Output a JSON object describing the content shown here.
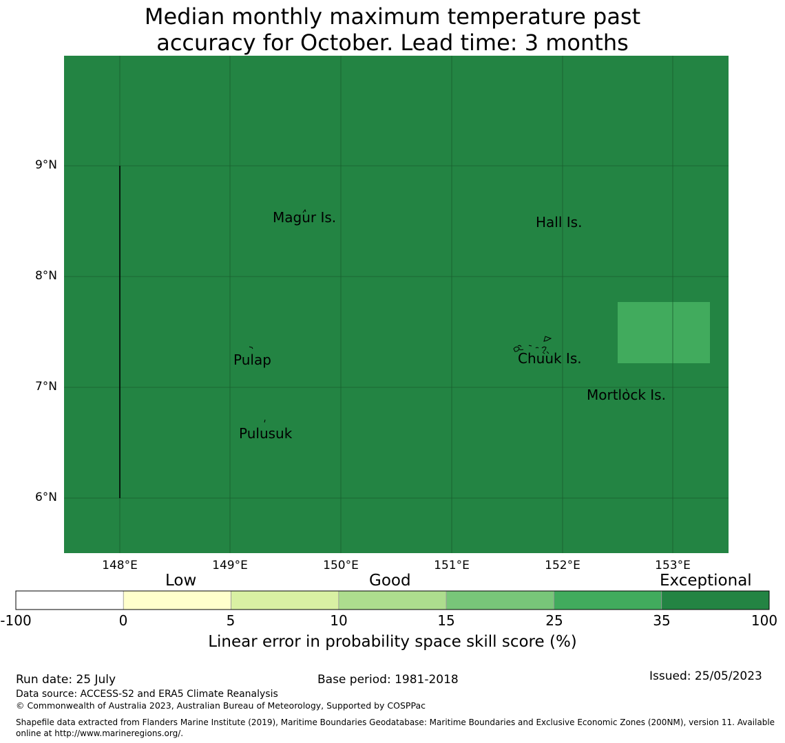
{
  "title": {
    "line1": "Median monthly maximum temperature past",
    "line2": "accuracy for October. Lead time: 3 months"
  },
  "map": {
    "fill_color": "#238443",
    "highlight_color": "#41ab5d",
    "gridline_color": "#1a5e2e",
    "lat_labels": [
      "9°N",
      "8°N",
      "7°N",
      "6°N"
    ],
    "lon_labels": [
      "148°E",
      "149°E",
      "150°E",
      "151°E",
      "152°E",
      "153°E"
    ],
    "places": [
      {
        "name": "Magur Is."
      },
      {
        "name": "Hall Is."
      },
      {
        "name": "Pulap"
      },
      {
        "name": "Chuuk Is."
      },
      {
        "name": "Mortlock Is."
      },
      {
        "name": "Pulusuk"
      }
    ]
  },
  "colorbar": {
    "tiers": [
      "Low",
      "Good",
      "Exceptional"
    ],
    "ticks": [
      "-100",
      "0",
      "5",
      "10",
      "15",
      "25",
      "35",
      "100"
    ],
    "colors": [
      "#ffffff",
      "#ffffcc",
      "#d9f0a3",
      "#addd8e",
      "#78c679",
      "#41ab5d",
      "#238443"
    ],
    "label": "Linear error in probability space skill score (%)"
  },
  "footer": {
    "run_date": "Run date: 25 July",
    "base_period": "Base period: 1981-2018",
    "issued": "Issued: 25/05/2023",
    "data_source": "Data source: ACCESS-S2 and ERA5 Climate Reanalysis",
    "copyright": "© Commonwealth of Australia 2023, Australian Bureau of Meteorology, Supported by COSPPac",
    "shapefile_line1": "Shapefile data extracted from Flanders Marine Institute (2019), Maritime Boundaries Geodatabase: Maritime Boundaries and Exclusive Economic Zones (200NM), version 11. Available",
    "shapefile_line2": "online at http://www.marineregions.org/."
  }
}
